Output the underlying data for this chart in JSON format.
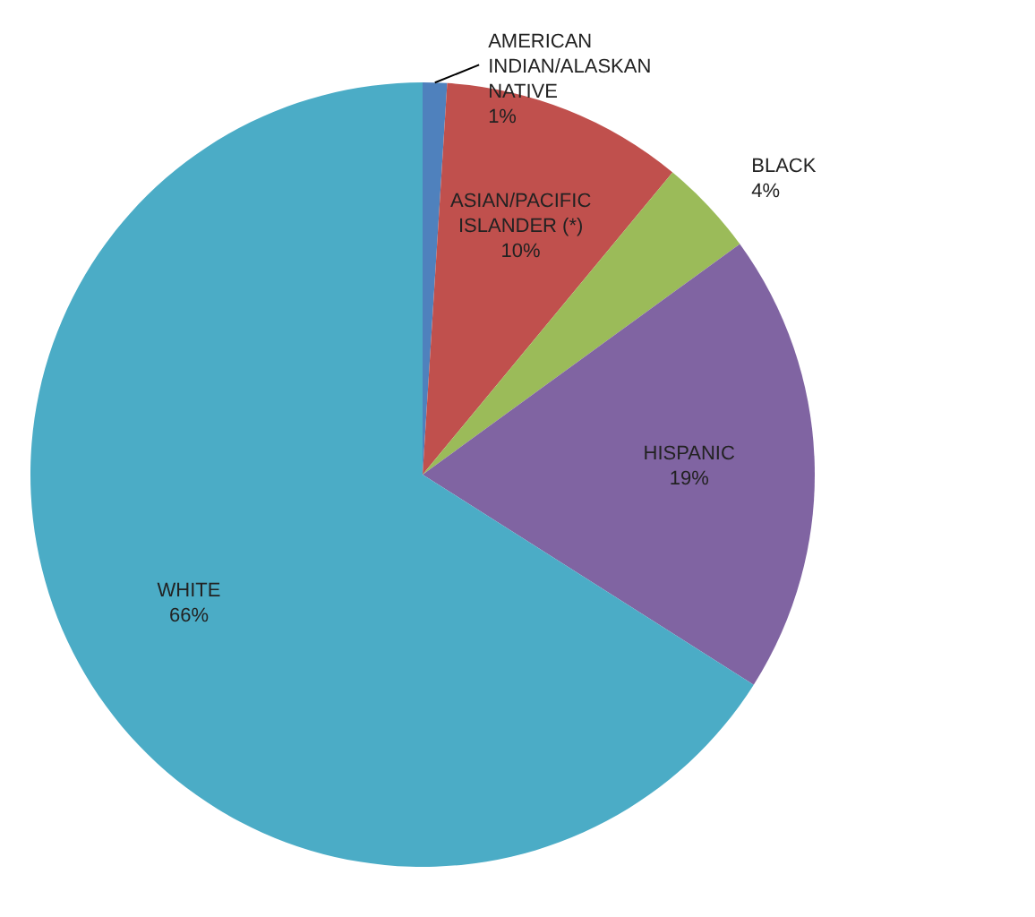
{
  "chart_data": {
    "type": "pie",
    "categories": [
      "AMERICAN INDIAN/ALASKAN NATIVE",
      "ASIAN/PACIFIC ISLANDER (*)",
      "BLACK",
      "HISPANIC",
      "WHITE"
    ],
    "values": [
      1,
      10,
      4,
      19,
      66
    ],
    "value_labels": [
      "1%",
      "10%",
      "4%",
      "19%",
      "66%"
    ],
    "colors": [
      "#4f81bd",
      "#c0504d",
      "#9bbb59",
      "#8064a2",
      "#4bacc6"
    ],
    "legend": false
  }
}
